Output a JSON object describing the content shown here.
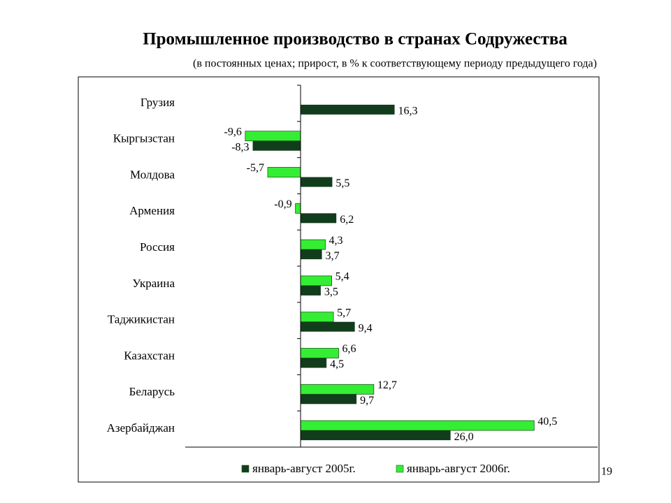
{
  "chart_data": {
    "type": "hbar",
    "title": "Промышленное производство в странах Содружества",
    "subtitle": "(в постоянных ценах; прирост, в % к соответствующему периоду предыдущего года)",
    "categories": [
      "Грузия",
      "Кыргызстан",
      "Молдова",
      "Армения",
      "Россия",
      "Украина",
      "Таджикистан",
      "Казахстан",
      "Беларусь",
      "Азербайджан"
    ],
    "series": [
      {
        "name": "январь-август 2005г.",
        "color": "#123d1c",
        "values": [
          16.3,
          -8.3,
          5.5,
          6.2,
          3.7,
          3.5,
          9.4,
          4.5,
          9.7,
          26.0
        ],
        "value_labels": [
          "16,3",
          "-8,3",
          "5,5",
          "6,2",
          "3,7",
          "3,5",
          "9,4",
          "4,5",
          "9,7",
          "26,0"
        ]
      },
      {
        "name": "январь-август 2006г.",
        "color": "#33ee33",
        "values": [
          null,
          -9.6,
          -5.7,
          -0.9,
          4.3,
          5.4,
          5.7,
          6.6,
          12.7,
          40.5
        ],
        "value_labels": [
          null,
          "-9,6",
          "-5,7",
          "-0,9",
          "4,3",
          "5,4",
          "5,7",
          "6,6",
          "12,7",
          "40,5"
        ]
      }
    ],
    "xlim": [
      -20,
      51.5
    ],
    "legend": "bottom",
    "page_number": "19"
  }
}
